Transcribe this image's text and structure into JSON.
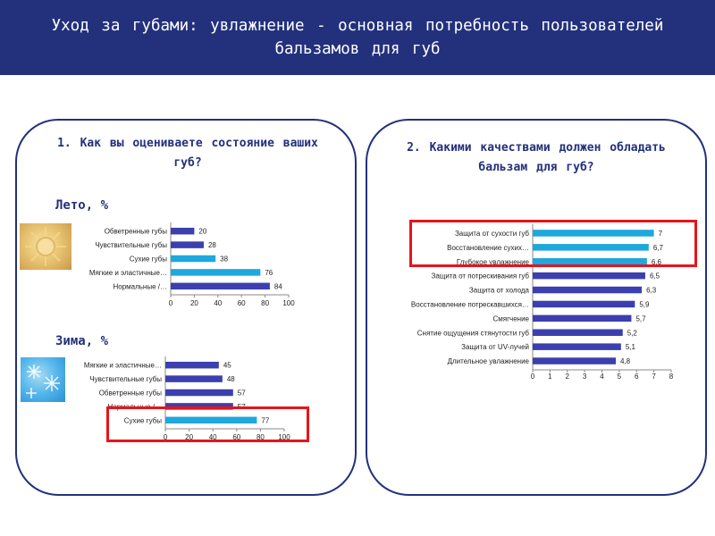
{
  "header": {
    "title": "Уход за губами: увлажнение - основная потребность пользователей бальзамов для губ"
  },
  "colors": {
    "header_bg": "#23307c",
    "bar_primary": "#3c3fae",
    "bar_highlight": "#1ea8dd",
    "highlight_border": "#e8141b"
  },
  "left_panel": {
    "question": "1. Как вы оцениваете состояние ваших губ?",
    "summer_label": "Лето, %",
    "summer_icon": "sun-texture-icon",
    "winter_label": "Зима, %",
    "winter_icon": "snowflake-icon"
  },
  "right_panel": {
    "question": "2. Какими качествами должен обладать бальзам для губ?"
  },
  "chart_data": [
    {
      "id": "summer",
      "type": "bar",
      "orientation": "horizontal",
      "categories": [
        "Обветренные губы",
        "Чувствительные губы",
        "Сухие губы",
        "Мягкие и эластичные…",
        "Нормальные /…"
      ],
      "values": [
        20,
        28,
        38,
        76,
        84
      ],
      "value_labels": [
        "20",
        "28",
        "38",
        "76",
        "84"
      ],
      "highlight": [
        false,
        false,
        true,
        true,
        false
      ],
      "xlim": [
        0,
        100
      ],
      "xticks": [
        0,
        20,
        40,
        60,
        80,
        100
      ]
    },
    {
      "id": "winter",
      "type": "bar",
      "orientation": "horizontal",
      "categories": [
        "Мягкие и эластичные…",
        "Чувствительные губы",
        "Обветренные губы",
        "Нормальные /…",
        "Сухие губы"
      ],
      "values": [
        45,
        48,
        57,
        57,
        77
      ],
      "value_labels": [
        "45",
        "48",
        "57",
        "57",
        "77"
      ],
      "highlight": [
        false,
        false,
        false,
        false,
        true
      ],
      "xlim": [
        0,
        100
      ],
      "xticks": [
        0,
        20,
        40,
        60,
        80,
        100
      ]
    },
    {
      "id": "qualities",
      "type": "bar",
      "orientation": "horizontal",
      "categories": [
        "Защита от сухости губ",
        "Восстановление сухих…",
        "Глубокое увлажнение",
        "Защита от потрескивания губ",
        "Защита от холода",
        "Восстановление потрескавшихся…",
        "Смягчение",
        "Снятие ощущения стянутости губ",
        "Защита от UV-лучей",
        "Длительное увлажнение"
      ],
      "values": [
        7,
        6.7,
        6.6,
        6.5,
        6.3,
        5.9,
        5.7,
        5.2,
        5.1,
        4.8
      ],
      "value_labels": [
        "7",
        "6,7",
        "6,6",
        "6,5",
        "6,3",
        "5,9",
        "5,7",
        "5,2",
        "5,1",
        "4,8"
      ],
      "highlight": [
        true,
        true,
        true,
        false,
        false,
        false,
        false,
        false,
        false,
        false
      ],
      "xlim": [
        0,
        8
      ],
      "xticks": [
        0,
        1,
        2,
        3,
        4,
        5,
        6,
        7,
        8
      ]
    }
  ]
}
